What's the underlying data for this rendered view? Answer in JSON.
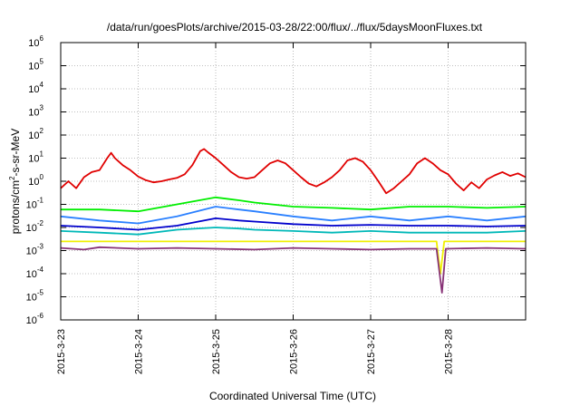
{
  "chart_data": {
    "type": "line",
    "title": "/data/run/goesPlots/archive/2015-03-28/22:00/flux/../flux/5daysMoonFluxes.txt",
    "xlabel": "Coordinated Universal Time (UTC)",
    "ylabel_parts": {
      "base": "protons/cm",
      "exp": "2",
      "rest": "-s-sr-MeV"
    },
    "yscale": "log",
    "ylim": [
      1e-06,
      1000000.0
    ],
    "xlim_days": [
      0,
      6
    ],
    "grid": true,
    "x_ticks": [
      {
        "day": 0,
        "label": "2015-3-23"
      },
      {
        "day": 1,
        "label": "2015-3-24"
      },
      {
        "day": 2,
        "label": "2015-3-25"
      },
      {
        "day": 3,
        "label": "2015-3-26"
      },
      {
        "day": 4,
        "label": "2015-3-27"
      },
      {
        "day": 5,
        "label": "2015-3-28"
      }
    ],
    "y_ticks": [
      {
        "value": 1e-06,
        "base": "10",
        "exp": "-6"
      },
      {
        "value": 1e-05,
        "base": "10",
        "exp": "-5"
      },
      {
        "value": 0.0001,
        "base": "10",
        "exp": "-4"
      },
      {
        "value": 0.001,
        "base": "10",
        "exp": "-3"
      },
      {
        "value": 0.01,
        "base": "10",
        "exp": "-2"
      },
      {
        "value": 0.1,
        "base": "10",
        "exp": "-1"
      },
      {
        "value": 1,
        "base": "10",
        "exp": "0"
      },
      {
        "value": 10,
        "base": "10",
        "exp": "1"
      },
      {
        "value": 100,
        "base": "10",
        "exp": "2"
      },
      {
        "value": 1000.0,
        "base": "10",
        "exp": "3"
      },
      {
        "value": 10000.0,
        "base": "10",
        "exp": "4"
      },
      {
        "value": 100000.0,
        "base": "10",
        "exp": "5"
      },
      {
        "value": 1000000.0,
        "base": "10",
        "exp": "6"
      }
    ],
    "series": [
      {
        "color": "#e00000",
        "points": [
          [
            0,
            0.5
          ],
          [
            0.1,
            1.0
          ],
          [
            0.2,
            0.5
          ],
          [
            0.3,
            1.5
          ],
          [
            0.4,
            2.5
          ],
          [
            0.5,
            3.0
          ],
          [
            0.6,
            10
          ],
          [
            0.65,
            17
          ],
          [
            0.7,
            10
          ],
          [
            0.8,
            5
          ],
          [
            0.9,
            3
          ],
          [
            1.0,
            1.6
          ],
          [
            1.1,
            1.1
          ],
          [
            1.2,
            0.9
          ],
          [
            1.3,
            1.0
          ],
          [
            1.4,
            1.2
          ],
          [
            1.5,
            1.4
          ],
          [
            1.6,
            2.0
          ],
          [
            1.7,
            5
          ],
          [
            1.8,
            20
          ],
          [
            1.85,
            25
          ],
          [
            1.9,
            18
          ],
          [
            2.0,
            10
          ],
          [
            2.1,
            5
          ],
          [
            2.2,
            2.5
          ],
          [
            2.3,
            1.5
          ],
          [
            2.4,
            1.3
          ],
          [
            2.5,
            1.5
          ],
          [
            2.6,
            3
          ],
          [
            2.7,
            6
          ],
          [
            2.8,
            8
          ],
          [
            2.9,
            6
          ],
          [
            3.0,
            3
          ],
          [
            3.1,
            1.5
          ],
          [
            3.2,
            0.8
          ],
          [
            3.3,
            0.6
          ],
          [
            3.4,
            0.9
          ],
          [
            3.5,
            1.5
          ],
          [
            3.6,
            3
          ],
          [
            3.7,
            8
          ],
          [
            3.8,
            10
          ],
          [
            3.9,
            7
          ],
          [
            4.0,
            3
          ],
          [
            4.1,
            1.0
          ],
          [
            4.2,
            0.3
          ],
          [
            4.3,
            0.5
          ],
          [
            4.4,
            1.0
          ],
          [
            4.5,
            2.0
          ],
          [
            4.6,
            6
          ],
          [
            4.7,
            10
          ],
          [
            4.8,
            6
          ],
          [
            4.9,
            3
          ],
          [
            5.0,
            2.0
          ],
          [
            5.1,
            0.8
          ],
          [
            5.2,
            0.4
          ],
          [
            5.3,
            0.9
          ],
          [
            5.4,
            0.5
          ],
          [
            5.5,
            1.2
          ],
          [
            5.6,
            1.8
          ],
          [
            5.7,
            2.5
          ],
          [
            5.8,
            1.7
          ],
          [
            5.9,
            2.2
          ],
          [
            6.0,
            1.5
          ]
        ]
      },
      {
        "color": "#00ee00",
        "points": [
          [
            0,
            0.06
          ],
          [
            0.5,
            0.06
          ],
          [
            1.0,
            0.05
          ],
          [
            1.5,
            0.1
          ],
          [
            2.0,
            0.2
          ],
          [
            2.3,
            0.15
          ],
          [
            2.5,
            0.12
          ],
          [
            3.0,
            0.08
          ],
          [
            3.5,
            0.07
          ],
          [
            4.0,
            0.06
          ],
          [
            4.5,
            0.08
          ],
          [
            5.0,
            0.08
          ],
          [
            5.5,
            0.07
          ],
          [
            6.0,
            0.08
          ]
        ]
      },
      {
        "color": "#2a80ff",
        "points": [
          [
            0,
            0.03
          ],
          [
            0.5,
            0.02
          ],
          [
            1.0,
            0.015
          ],
          [
            1.5,
            0.03
          ],
          [
            2.0,
            0.08
          ],
          [
            2.3,
            0.06
          ],
          [
            2.5,
            0.05
          ],
          [
            3.0,
            0.03
          ],
          [
            3.5,
            0.02
          ],
          [
            4.0,
            0.03
          ],
          [
            4.5,
            0.02
          ],
          [
            5.0,
            0.03
          ],
          [
            5.5,
            0.02
          ],
          [
            6.0,
            0.03
          ]
        ]
      },
      {
        "color": "#0000cc",
        "points": [
          [
            0,
            0.012
          ],
          [
            0.5,
            0.01
          ],
          [
            1.0,
            0.008
          ],
          [
            1.5,
            0.012
          ],
          [
            2.0,
            0.025
          ],
          [
            2.3,
            0.02
          ],
          [
            2.5,
            0.018
          ],
          [
            3.0,
            0.014
          ],
          [
            3.5,
            0.012
          ],
          [
            4.0,
            0.013
          ],
          [
            4.5,
            0.012
          ],
          [
            5.0,
            0.012
          ],
          [
            5.5,
            0.011
          ],
          [
            6.0,
            0.012
          ]
        ]
      },
      {
        "color": "#00b8b8",
        "points": [
          [
            0,
            0.007
          ],
          [
            0.5,
            0.006
          ],
          [
            1.0,
            0.005
          ],
          [
            1.5,
            0.008
          ],
          [
            2.0,
            0.01
          ],
          [
            2.3,
            0.009
          ],
          [
            2.5,
            0.008
          ],
          [
            3.0,
            0.007
          ],
          [
            3.5,
            0.006
          ],
          [
            4.0,
            0.007
          ],
          [
            4.5,
            0.006
          ],
          [
            5.0,
            0.006
          ],
          [
            5.5,
            0.006
          ],
          [
            6.0,
            0.007
          ]
        ]
      },
      {
        "color": "#f0f000",
        "points": [
          [
            0,
            0.0025
          ],
          [
            1.0,
            0.0025
          ],
          [
            2.0,
            0.0025
          ],
          [
            3.0,
            0.0025
          ],
          [
            4.0,
            0.0025
          ],
          [
            4.85,
            0.0025
          ],
          [
            4.9,
            0.0001
          ],
          [
            4.95,
            0.0025
          ],
          [
            5.5,
            0.0025
          ],
          [
            6.0,
            0.0025
          ]
        ]
      },
      {
        "color": "#883377",
        "points": [
          [
            0,
            0.0013
          ],
          [
            0.3,
            0.0011
          ],
          [
            0.5,
            0.0014
          ],
          [
            1.0,
            0.0012
          ],
          [
            1.5,
            0.0013
          ],
          [
            2.0,
            0.0012
          ],
          [
            2.5,
            0.0011
          ],
          [
            3.0,
            0.0013
          ],
          [
            3.5,
            0.0012
          ],
          [
            4.0,
            0.0011
          ],
          [
            4.5,
            0.0012
          ],
          [
            4.85,
            0.0012
          ],
          [
            4.92,
            1.5e-05
          ],
          [
            4.97,
            0.0012
          ],
          [
            5.5,
            0.0013
          ],
          [
            6.0,
            0.0012
          ]
        ]
      }
    ]
  }
}
